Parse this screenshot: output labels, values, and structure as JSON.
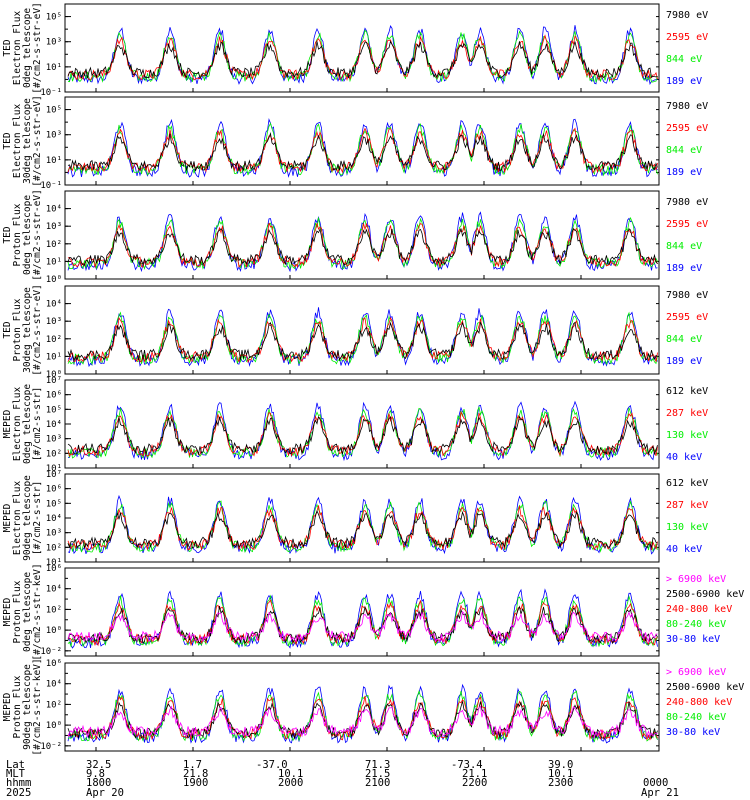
{
  "colors": {
    "black": "#000000",
    "red": "#ff0000",
    "green": "#00ee00",
    "blue": "#0000ff",
    "magenta": "#ff00ff"
  },
  "footer": {
    "row_labels": [
      "Lat",
      "MLT",
      "hhmm",
      "2025"
    ],
    "lat": [
      "32.5",
      "1.7",
      "-37.0",
      "71.3",
      "-73.4",
      "39.0"
    ],
    "mlt": [
      "9.8",
      "21.8",
      "10.1",
      "21.5",
      "21.1",
      "10.1"
    ],
    "hhmm": [
      "1800",
      "1900",
      "2000",
      "2100",
      "2200",
      "2300",
      "0000"
    ],
    "dates": [
      "Apr 20",
      "Apr 21"
    ]
  },
  "chart_data": [
    {
      "type": "line",
      "log_y": true,
      "ylabel": [
        "TED",
        "Electron Flux",
        "0deg telescope",
        "[#/cm2-s-str-eV]"
      ],
      "yticks": [
        "10⁻¹",
        "10¹",
        "10³",
        "10⁵"
      ],
      "ylim_exp": [
        -1,
        6
      ],
      "label_exps": [
        -1,
        1,
        3,
        5
      ],
      "series": [
        {
          "name": "7980 eV",
          "color": "black"
        },
        {
          "name": "2595 eV",
          "color": "red"
        },
        {
          "name": "844 eV",
          "color": "green"
        },
        {
          "name": "189 eV",
          "color": "blue"
        }
      ]
    },
    {
      "type": "line",
      "log_y": true,
      "ylabel": [
        "TED",
        "Electron Flux",
        "30deg telescope",
        "[#/cm2-s-str-eV]"
      ],
      "yticks": [
        "10⁻¹",
        "10¹",
        "10³",
        "10⁵"
      ],
      "ylim_exp": [
        -1,
        6
      ],
      "label_exps": [
        -1,
        1,
        3,
        5
      ],
      "series": [
        {
          "name": "7980 eV",
          "color": "black"
        },
        {
          "name": "2595 eV",
          "color": "red"
        },
        {
          "name": "844 eV",
          "color": "green"
        },
        {
          "name": "189 eV",
          "color": "blue"
        }
      ]
    },
    {
      "type": "line",
      "log_y": true,
      "ylabel": [
        "TED",
        "Proton Flux",
        "0deg telescope",
        "[#/cm2-s-str-eV]"
      ],
      "yticks": [
        "10⁰",
        "10¹",
        "10²",
        "10³",
        "10⁴"
      ],
      "ylim_exp": [
        0,
        5
      ],
      "label_exps": [
        0,
        1,
        2,
        3,
        4
      ],
      "series": [
        {
          "name": "7980 eV",
          "color": "black"
        },
        {
          "name": "2595 eV",
          "color": "red"
        },
        {
          "name": "844 eV",
          "color": "green"
        },
        {
          "name": "189 eV",
          "color": "blue"
        }
      ]
    },
    {
      "type": "line",
      "log_y": true,
      "ylabel": [
        "TED",
        "Proton Flux",
        "30deg telescope",
        "[#/cm2-s-str-eV]"
      ],
      "yticks": [
        "10⁰",
        "10¹",
        "10²",
        "10³",
        "10⁴"
      ],
      "ylim_exp": [
        0,
        5
      ],
      "label_exps": [
        0,
        1,
        2,
        3,
        4
      ],
      "series": [
        {
          "name": "7980 eV",
          "color": "black"
        },
        {
          "name": "2595 eV",
          "color": "red"
        },
        {
          "name": "844 eV",
          "color": "green"
        },
        {
          "name": "189 eV",
          "color": "blue"
        }
      ]
    },
    {
      "type": "line",
      "log_y": true,
      "ylabel": [
        "MEPED",
        "Electron Flux",
        "0deg telescope",
        "[#/cm2-s-str]"
      ],
      "yticks": [
        "10¹",
        "10²",
        "10³",
        "10⁴",
        "10⁵",
        "10⁶",
        "10⁷"
      ],
      "ylim_exp": [
        1,
        7
      ],
      "label_exps": [
        1,
        2,
        3,
        4,
        5,
        6,
        7
      ],
      "series": [
        {
          "name": "612 keV",
          "color": "black"
        },
        {
          "name": "287 keV",
          "color": "red"
        },
        {
          "name": "130 keV",
          "color": "green"
        },
        {
          "name": "40 keV",
          "color": "blue"
        }
      ]
    },
    {
      "type": "line",
      "log_y": true,
      "ylabel": [
        "MEPED",
        "Electron Flux",
        "90deg telescope",
        "[#/cm2-s-str]"
      ],
      "yticks": [
        "10¹",
        "10²",
        "10³",
        "10⁴",
        "10⁵",
        "10⁶",
        "10⁷"
      ],
      "ylim_exp": [
        1,
        7
      ],
      "label_exps": [
        1,
        2,
        3,
        4,
        5,
        6,
        7
      ],
      "series": [
        {
          "name": "612 keV",
          "color": "black"
        },
        {
          "name": "287 keV",
          "color": "red"
        },
        {
          "name": "130 keV",
          "color": "green"
        },
        {
          "name": "40 keV",
          "color": "blue"
        }
      ]
    },
    {
      "type": "line",
      "log_y": true,
      "ylabel": [
        "MEPED",
        "Proton Flux",
        "0deg telescope",
        "[#/cm2-s-str-keV]"
      ],
      "yticks": [
        "10⁻²",
        "10⁰",
        "10²",
        "10⁴",
        "10⁶"
      ],
      "ylim_exp": [
        -2.5,
        6
      ],
      "label_exps": [
        -2,
        0,
        2,
        4,
        6
      ],
      "series": [
        {
          "name": "> 6900 keV",
          "color": "magenta"
        },
        {
          "name": "2500-6900 keV",
          "color": "black"
        },
        {
          "name": "240-800 keV",
          "color": "red"
        },
        {
          "name": "80-240 keV",
          "color": "green"
        },
        {
          "name": "30-80 keV",
          "color": "blue"
        }
      ]
    },
    {
      "type": "line",
      "log_y": true,
      "ylabel": [
        "MEPED",
        "Proton Flux",
        "90deg telescope",
        "[#/cm2-s-str-keV]"
      ],
      "yticks": [
        "10⁻²",
        "10⁰",
        "10²",
        "10⁴",
        "10⁶"
      ],
      "ylim_exp": [
        -2.5,
        6
      ],
      "label_exps": [
        -2,
        0,
        2,
        4,
        6
      ],
      "series": [
        {
          "name": "> 6900 keV",
          "color": "magenta"
        },
        {
          "name": "2500-6900 keV",
          "color": "black"
        },
        {
          "name": "240-800 keV",
          "color": "red"
        },
        {
          "name": "80-240 keV",
          "color": "green"
        },
        {
          "name": "30-80 keV",
          "color": "blue"
        }
      ]
    }
  ]
}
